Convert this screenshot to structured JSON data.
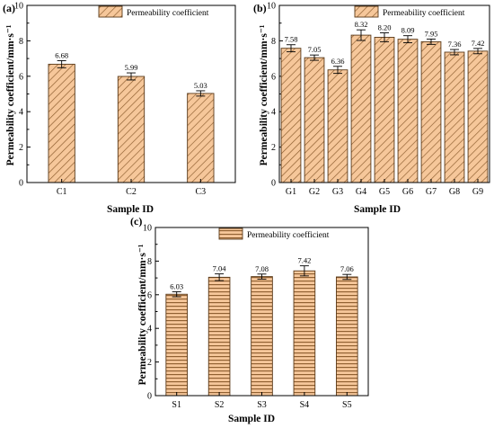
{
  "chart_data": [
    {
      "panel": "(a)",
      "type": "bar",
      "categories": [
        "C1",
        "C2",
        "C3"
      ],
      "series": [
        {
          "name": "Permeability coefficient",
          "values": [
            6.68,
            5.99,
            5.03
          ],
          "errors": [
            0.2,
            0.2,
            0.15
          ]
        }
      ],
      "value_labels": [
        "6.68",
        "5.99",
        "5.03"
      ],
      "xlabel": "Sample ID",
      "ylabel": "Permeability coefficient/mm·s⁻¹",
      "ylim": [
        0,
        10
      ],
      "yticks": [
        0,
        2,
        4,
        6,
        8,
        10
      ],
      "ytick_labels": [
        "0",
        "2",
        "4",
        "6",
        "8",
        "10"
      ],
      "legend_position": "top-right",
      "grid": false,
      "pattern": "diagonal-hatch",
      "fill_color": "#f6c79a",
      "hatch_color": "#8a5a2b"
    },
    {
      "panel": "(b)",
      "type": "bar",
      "categories": [
        "G1",
        "G2",
        "G3",
        "G4",
        "G5",
        "G6",
        "G7",
        "G8",
        "G9"
      ],
      "series": [
        {
          "name": "Permeability coefficient",
          "values": [
            7.58,
            7.05,
            6.36,
            8.32,
            8.2,
            8.09,
            7.95,
            7.36,
            7.42
          ],
          "errors": [
            0.2,
            0.15,
            0.2,
            0.3,
            0.25,
            0.2,
            0.15,
            0.15,
            0.15
          ]
        }
      ],
      "value_labels": [
        "7.58",
        "7.05",
        "6.36",
        "8.32",
        "8.20",
        "8.09",
        "7.95",
        "7.36",
        "7.42"
      ],
      "xlabel": "Sample ID",
      "ylabel": "Permeability coefficient/mm·s⁻¹",
      "ylim": [
        0,
        10
      ],
      "yticks": [
        0,
        2,
        4,
        6,
        8,
        10
      ],
      "ytick_labels": [
        "0",
        "2",
        "4",
        "6",
        "8",
        "10"
      ],
      "legend_position": "top-right",
      "grid": false,
      "pattern": "diagonal-hatch",
      "fill_color": "#f6c79a",
      "hatch_color": "#8a5a2b"
    },
    {
      "panel": "(c)",
      "type": "bar",
      "categories": [
        "S1",
        "S2",
        "S3",
        "S4",
        "S5"
      ],
      "series": [
        {
          "name": "Permeability coefficient",
          "values": [
            6.03,
            7.04,
            7.08,
            7.42,
            7.06
          ],
          "errors": [
            0.15,
            0.2,
            0.15,
            0.3,
            0.15
          ]
        }
      ],
      "value_labels": [
        "6.03",
        "7.04",
        "7.08",
        "7.42",
        "7.06"
      ],
      "xlabel": "Sample ID",
      "ylabel": "Permeability coefficient/mm·s⁻¹",
      "ylim": [
        0,
        10
      ],
      "yticks": [
        0,
        2,
        4,
        6,
        8,
        10
      ],
      "ytick_labels": [
        "0",
        "2",
        "4",
        "6",
        "8",
        "10"
      ],
      "legend_position": "top-right",
      "grid": false,
      "pattern": "horizontal-hatch",
      "fill_color": "#f6c79a",
      "hatch_color": "#8a5a2b"
    }
  ]
}
